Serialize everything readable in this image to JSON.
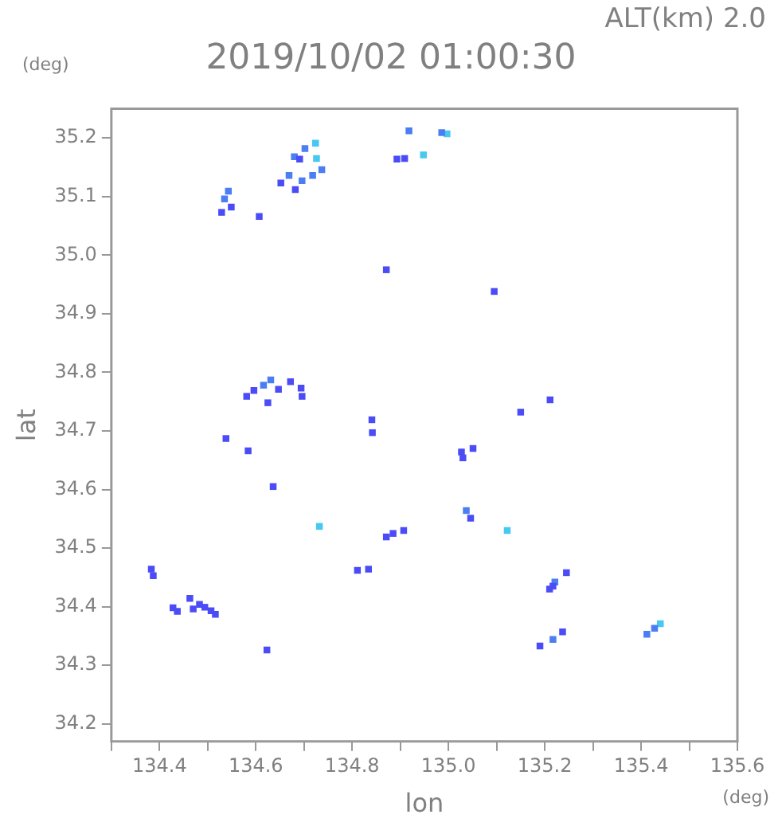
{
  "chart_data": {
    "type": "scatter",
    "title": "2019/10/02 01:00:30",
    "subtitle": "ALT(km) 2.0",
    "xlabel": "lon",
    "ylabel": "lat",
    "annotations": [
      "(deg)",
      "(deg)"
    ],
    "xlim": [
      134.3,
      135.6
    ],
    "xticks": [
      {
        "value": 134.3,
        "label": null
      },
      134.4,
      {
        "value": 134.5,
        "label": null
      },
      134.6,
      {
        "value": 134.7,
        "label": null
      },
      134.8,
      {
        "value": 134.9,
        "label": null
      },
      {
        "value": 135,
        "label": "135.0"
      },
      {
        "value": 135.1,
        "label": null
      },
      135.2,
      {
        "value": 135.3,
        "label": null
      },
      135.4,
      {
        "value": 135.5,
        "label": null
      },
      135.6
    ],
    "ylim": [
      34.17,
      35.25
    ],
    "yticks": [
      34.2,
      34.3,
      34.4,
      34.5,
      34.6,
      34.7,
      34.8,
      34.9,
      {
        "value": 35,
        "label": "35.0"
      },
      35.1,
      35.2
    ],
    "grid": false,
    "legend": false,
    "marker": "square",
    "series": [
      {
        "color": "#4b4cf5",
        "x": [
          134.529,
          134.549,
          134.607,
          134.691,
          134.682,
          134.652,
          134.871,
          135.095,
          135.211,
          134.581,
          134.596,
          134.625,
          134.672,
          134.694,
          134.696,
          134.647,
          134.538,
          134.584,
          134.841,
          134.842,
          134.636,
          134.885,
          134.907,
          134.871,
          134.811,
          134.834,
          134.383,
          134.387,
          134.507,
          134.494,
          134.516,
          134.463,
          134.47,
          134.483,
          134.437,
          134.428,
          134.623,
          135.15,
          135.027,
          135.051,
          135.03,
          135.046,
          135.217,
          135.21,
          135.245,
          135.237,
          135.19,
          134.893,
          134.909
        ],
        "values": [
          35.073,
          35.082,
          35.066,
          35.164,
          35.112,
          35.123,
          34.975,
          34.938,
          34.753,
          34.759,
          34.769,
          34.748,
          34.784,
          34.773,
          34.759,
          34.771,
          34.687,
          34.666,
          34.719,
          34.697,
          34.605,
          34.525,
          34.53,
          34.519,
          34.462,
          34.464,
          34.464,
          34.453,
          34.393,
          34.399,
          34.387,
          34.414,
          34.396,
          34.404,
          34.392,
          34.398,
          34.326,
          34.732,
          34.664,
          34.67,
          34.654,
          34.551,
          34.435,
          34.43,
          34.458,
          34.357,
          34.333,
          35.164,
          35.165
        ]
      },
      {
        "color": "#4a7ef2",
        "x": [
          134.535,
          134.543,
          134.68,
          134.702,
          134.669,
          134.696,
          134.718,
          134.737,
          134.918,
          134.986,
          134.616,
          134.631,
          135.037,
          135.221,
          135.217,
          135.412,
          135.428
        ],
        "values": [
          35.096,
          35.109,
          35.168,
          35.182,
          35.136,
          35.127,
          35.136,
          35.146,
          35.212,
          35.209,
          34.778,
          34.787,
          34.564,
          34.442,
          34.344,
          34.353,
          34.363
        ]
      },
      {
        "color": "#46c8f0",
        "x": [
          134.724,
          134.726,
          134.997,
          134.948,
          134.732,
          135.122,
          135.44
        ],
        "values": [
          35.191,
          35.165,
          35.207,
          35.171,
          34.537,
          34.53,
          34.371
        ]
      }
    ]
  }
}
